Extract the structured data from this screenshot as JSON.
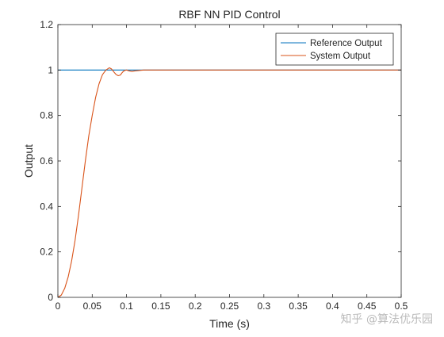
{
  "chart_data": {
    "type": "line",
    "title": "RBF NN PID Control",
    "xlabel": "Time (s)",
    "ylabel": "Output",
    "xlim": [
      0,
      0.5
    ],
    "ylim": [
      0,
      1.2
    ],
    "xticks": [
      0,
      0.05,
      0.1,
      0.15,
      0.2,
      0.25,
      0.3,
      0.35,
      0.4,
      0.45,
      0.5
    ],
    "yticks": [
      0,
      0.2,
      0.4,
      0.6,
      0.8,
      1,
      1.2
    ],
    "xtick_labels": [
      "0",
      "0.05",
      "0.1",
      "0.15",
      "0.2",
      "0.25",
      "0.3",
      "0.35",
      "0.4",
      "0.45",
      "0.5"
    ],
    "ytick_labels": [
      "0",
      "0.2",
      "0.4",
      "0.6",
      "0.8",
      "1",
      "1.2"
    ],
    "grid": false,
    "legend_position": "top-right",
    "series": [
      {
        "name": "Reference Output",
        "color": "#0072BD",
        "x": [
          0,
          0.5
        ],
        "y": [
          1,
          1
        ]
      },
      {
        "name": "System Output",
        "color": "#D95319",
        "x": [
          0,
          0.005,
          0.01,
          0.015,
          0.02,
          0.025,
          0.03,
          0.035,
          0.04,
          0.045,
          0.05,
          0.055,
          0.06,
          0.065,
          0.07,
          0.075,
          0.078,
          0.082,
          0.085,
          0.088,
          0.091,
          0.094,
          0.097,
          0.1,
          0.104,
          0.108,
          0.112,
          0.118,
          0.125,
          0.135,
          0.15,
          0.17,
          0.2,
          0.25,
          0.3,
          0.35,
          0.4,
          0.45,
          0.5
        ],
        "y": [
          0,
          0.01,
          0.04,
          0.09,
          0.16,
          0.25,
          0.36,
          0.48,
          0.6,
          0.71,
          0.8,
          0.88,
          0.94,
          0.98,
          1.0,
          1.01,
          1.005,
          0.99,
          0.98,
          0.975,
          0.978,
          0.99,
          0.998,
          1.0,
          0.996,
          0.994,
          0.996,
          0.998,
          1.0,
          1.0,
          1.0,
          1.0,
          1.0,
          1.0,
          1.0,
          1.0,
          1.0,
          1.0,
          1.0
        ]
      }
    ]
  },
  "watermark": "知乎 @算法优乐园"
}
